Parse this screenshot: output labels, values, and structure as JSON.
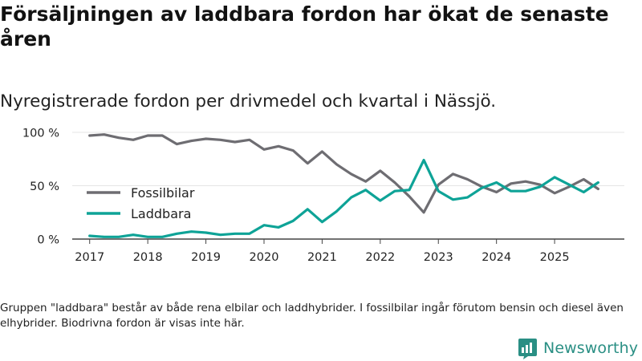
{
  "header": {
    "title": "Försäljningen av laddbara fordon har ökat de senaste åren",
    "subtitle": "Nyregistrerade fordon per drivmedel och kvartal i Nässjö."
  },
  "footer": {
    "note": "Gruppen \"laddbara\" består av både rena elbilar och laddhybrider. I fossilbilar ingår förutom bensin och diesel även elhybrider. Biodrivna fordon är visas inte här.",
    "brand": "Newsworthy",
    "brand_icon": "newsworthy-logo-icon"
  },
  "chart_data": {
    "type": "line",
    "title": "Försäljningen av laddbara fordon har ökat de senaste åren",
    "subtitle": "Nyregistrerade fordon per drivmedel och kvartal i Nässjö.",
    "xlabel": "",
    "ylabel": "",
    "x_ticks": [
      "2017",
      "2018",
      "2019",
      "2020",
      "2021",
      "2022",
      "2023",
      "2024",
      "2025"
    ],
    "x_range": [
      2016.7,
      2026.2
    ],
    "ylim": [
      0,
      100
    ],
    "y_ticks": [
      0,
      50,
      100
    ],
    "y_tick_labels": [
      "0 %",
      "50 %",
      "100 %"
    ],
    "grid": true,
    "legend_position": "middle-left",
    "x": [
      2017.0,
      2017.25,
      2017.5,
      2017.75,
      2018.0,
      2018.25,
      2018.5,
      2018.75,
      2019.0,
      2019.25,
      2019.5,
      2019.75,
      2020.0,
      2020.25,
      2020.5,
      2020.75,
      2021.0,
      2021.25,
      2021.5,
      2021.75,
      2022.0,
      2022.25,
      2022.5,
      2022.75,
      2023.0,
      2023.25,
      2023.5,
      2023.75,
      2024.0,
      2024.25,
      2024.5,
      2024.75,
      2025.0,
      2025.25,
      2025.5,
      2025.75
    ],
    "series": [
      {
        "name": "Fossilbilar",
        "color": "#6e6d72",
        "values": [
          97,
          98,
          95,
          93,
          97,
          97,
          89,
          92,
          94,
          93,
          91,
          93,
          84,
          87,
          83,
          71,
          82,
          70,
          61,
          54,
          64,
          53,
          40,
          25,
          51,
          61,
          56,
          49,
          44,
          52,
          54,
          51,
          43,
          49,
          56,
          47
        ]
      },
      {
        "name": "Laddbara",
        "color": "#0ea397",
        "values": [
          3,
          2,
          2,
          4,
          2,
          2,
          5,
          7,
          6,
          4,
          5,
          5,
          13,
          11,
          17,
          28,
          16,
          26,
          39,
          46,
          36,
          45,
          46,
          74,
          45,
          37,
          39,
          48,
          53,
          45,
          45,
          49,
          58,
          51,
          44,
          53
        ]
      }
    ]
  }
}
